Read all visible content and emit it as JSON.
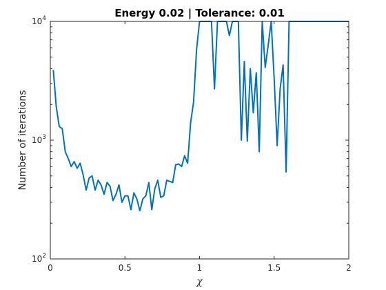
{
  "chart_data": {
    "type": "line",
    "title": "Energy 0.02 | Tolerance: 0.01",
    "xlabel": "χ",
    "ylabel": "Number of iterations",
    "xlim": [
      0,
      2
    ],
    "ylim": [
      100,
      10000
    ],
    "yscale": "log",
    "grid": false,
    "line_color": "#0072BD",
    "x_ticks": [
      {
        "value": 0,
        "label": "0"
      },
      {
        "value": 0.5,
        "label": "0.5"
      },
      {
        "value": 1,
        "label": "1"
      },
      {
        "value": 1.5,
        "label": "1.5"
      },
      {
        "value": 2,
        "label": "2"
      }
    ],
    "y_ticks": [
      {
        "value": 100,
        "base": "10",
        "exp": "2"
      },
      {
        "value": 1000,
        "base": "10",
        "exp": "3"
      },
      {
        "value": 10000,
        "base": "10",
        "exp": "4"
      }
    ],
    "series": [
      {
        "x": [
          0.02,
          0.04,
          0.06,
          0.08,
          0.1,
          0.12,
          0.14,
          0.16,
          0.18,
          0.2,
          0.22,
          0.24,
          0.26,
          0.28,
          0.3,
          0.32,
          0.34,
          0.36,
          0.38,
          0.4,
          0.42,
          0.44,
          0.46,
          0.48,
          0.5,
          0.52,
          0.54,
          0.56,
          0.58,
          0.6,
          0.62,
          0.64,
          0.66,
          0.68,
          0.7,
          0.72,
          0.74,
          0.76,
          0.78,
          0.8,
          0.82,
          0.84,
          0.86,
          0.88,
          0.9,
          0.92,
          0.94,
          0.96,
          0.98,
          1.0,
          1.02,
          1.04,
          1.06,
          1.08,
          1.1,
          1.12,
          1.14,
          1.16,
          1.18,
          1.2,
          1.22,
          1.24,
          1.26,
          1.28,
          1.3,
          1.32,
          1.34,
          1.36,
          1.38,
          1.4,
          1.42,
          1.44,
          1.46,
          1.48,
          1.5,
          1.52,
          1.54,
          1.56,
          1.58,
          1.6,
          1.62,
          1.64,
          1.66,
          1.68,
          1.7,
          1.72,
          1.74,
          1.76,
          1.78,
          1.8,
          1.82,
          1.84,
          1.86,
          1.88,
          1.9,
          1.92,
          1.94,
          1.96,
          1.98,
          2.0
        ],
        "y": [
          3900,
          1900,
          1300,
          1250,
          800,
          700,
          600,
          660,
          580,
          640,
          510,
          380,
          480,
          500,
          380,
          460,
          420,
          350,
          440,
          410,
          310,
          350,
          420,
          300,
          340,
          340,
          260,
          360,
          320,
          255,
          320,
          340,
          440,
          260,
          390,
          460,
          330,
          340,
          460,
          450,
          440,
          620,
          630,
          600,
          740,
          640,
          1400,
          2100,
          5800,
          10000,
          10000,
          10000,
          10000,
          10000,
          2700,
          10000,
          10000,
          10000,
          10000,
          7600,
          10000,
          10000,
          10000,
          1000,
          4600,
          980,
          4000,
          1700,
          3700,
          800,
          10000,
          4100,
          6300,
          10000,
          3300,
          900,
          2700,
          4300,
          540,
          10000,
          10000,
          10000,
          10000,
          10000,
          10000,
          10000,
          10000,
          10000,
          10000,
          10000,
          10000,
          10000,
          10000,
          10000,
          10000,
          10000,
          10000,
          10000,
          10000,
          10000
        ]
      }
    ]
  }
}
